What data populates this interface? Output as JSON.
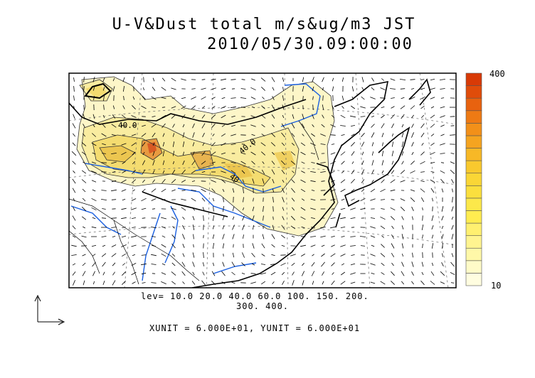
{
  "title": {
    "line1": "U-V&Dust total m/s&ug/m3 JST",
    "line2": "2010/05/30.09:00:00"
  },
  "contour_labels": [
    "40.0",
    "40.0",
    "40"
  ],
  "levels": {
    "line1": "lev= 10.0 20.0 40.0 60.0 100. 150. 200.",
    "line2": "300. 400."
  },
  "units_note": "XUNIT = 6.000E+01, YUNIT = 6.000E+01",
  "colorbar": {
    "max_label": "400",
    "min_label": "10",
    "colors": [
      "#fffde0",
      "#fffbc8",
      "#fff8a8",
      "#fff490",
      "#fff070",
      "#ffec50",
      "#fce84a",
      "#fbdf3e",
      "#fad636",
      "#f9c92e",
      "#f7b826",
      "#f5a420",
      "#f29019",
      "#ee7a14",
      "#e8620f",
      "#e04c0a",
      "#d83a06"
    ]
  },
  "colors": {
    "river": "#1a5fe0",
    "coast": "#000000",
    "dust_light": "#fdf5c2",
    "dust_mid": "#f5e17a",
    "dust_core": "#e8a050",
    "dust_peak": "#d45020"
  }
}
